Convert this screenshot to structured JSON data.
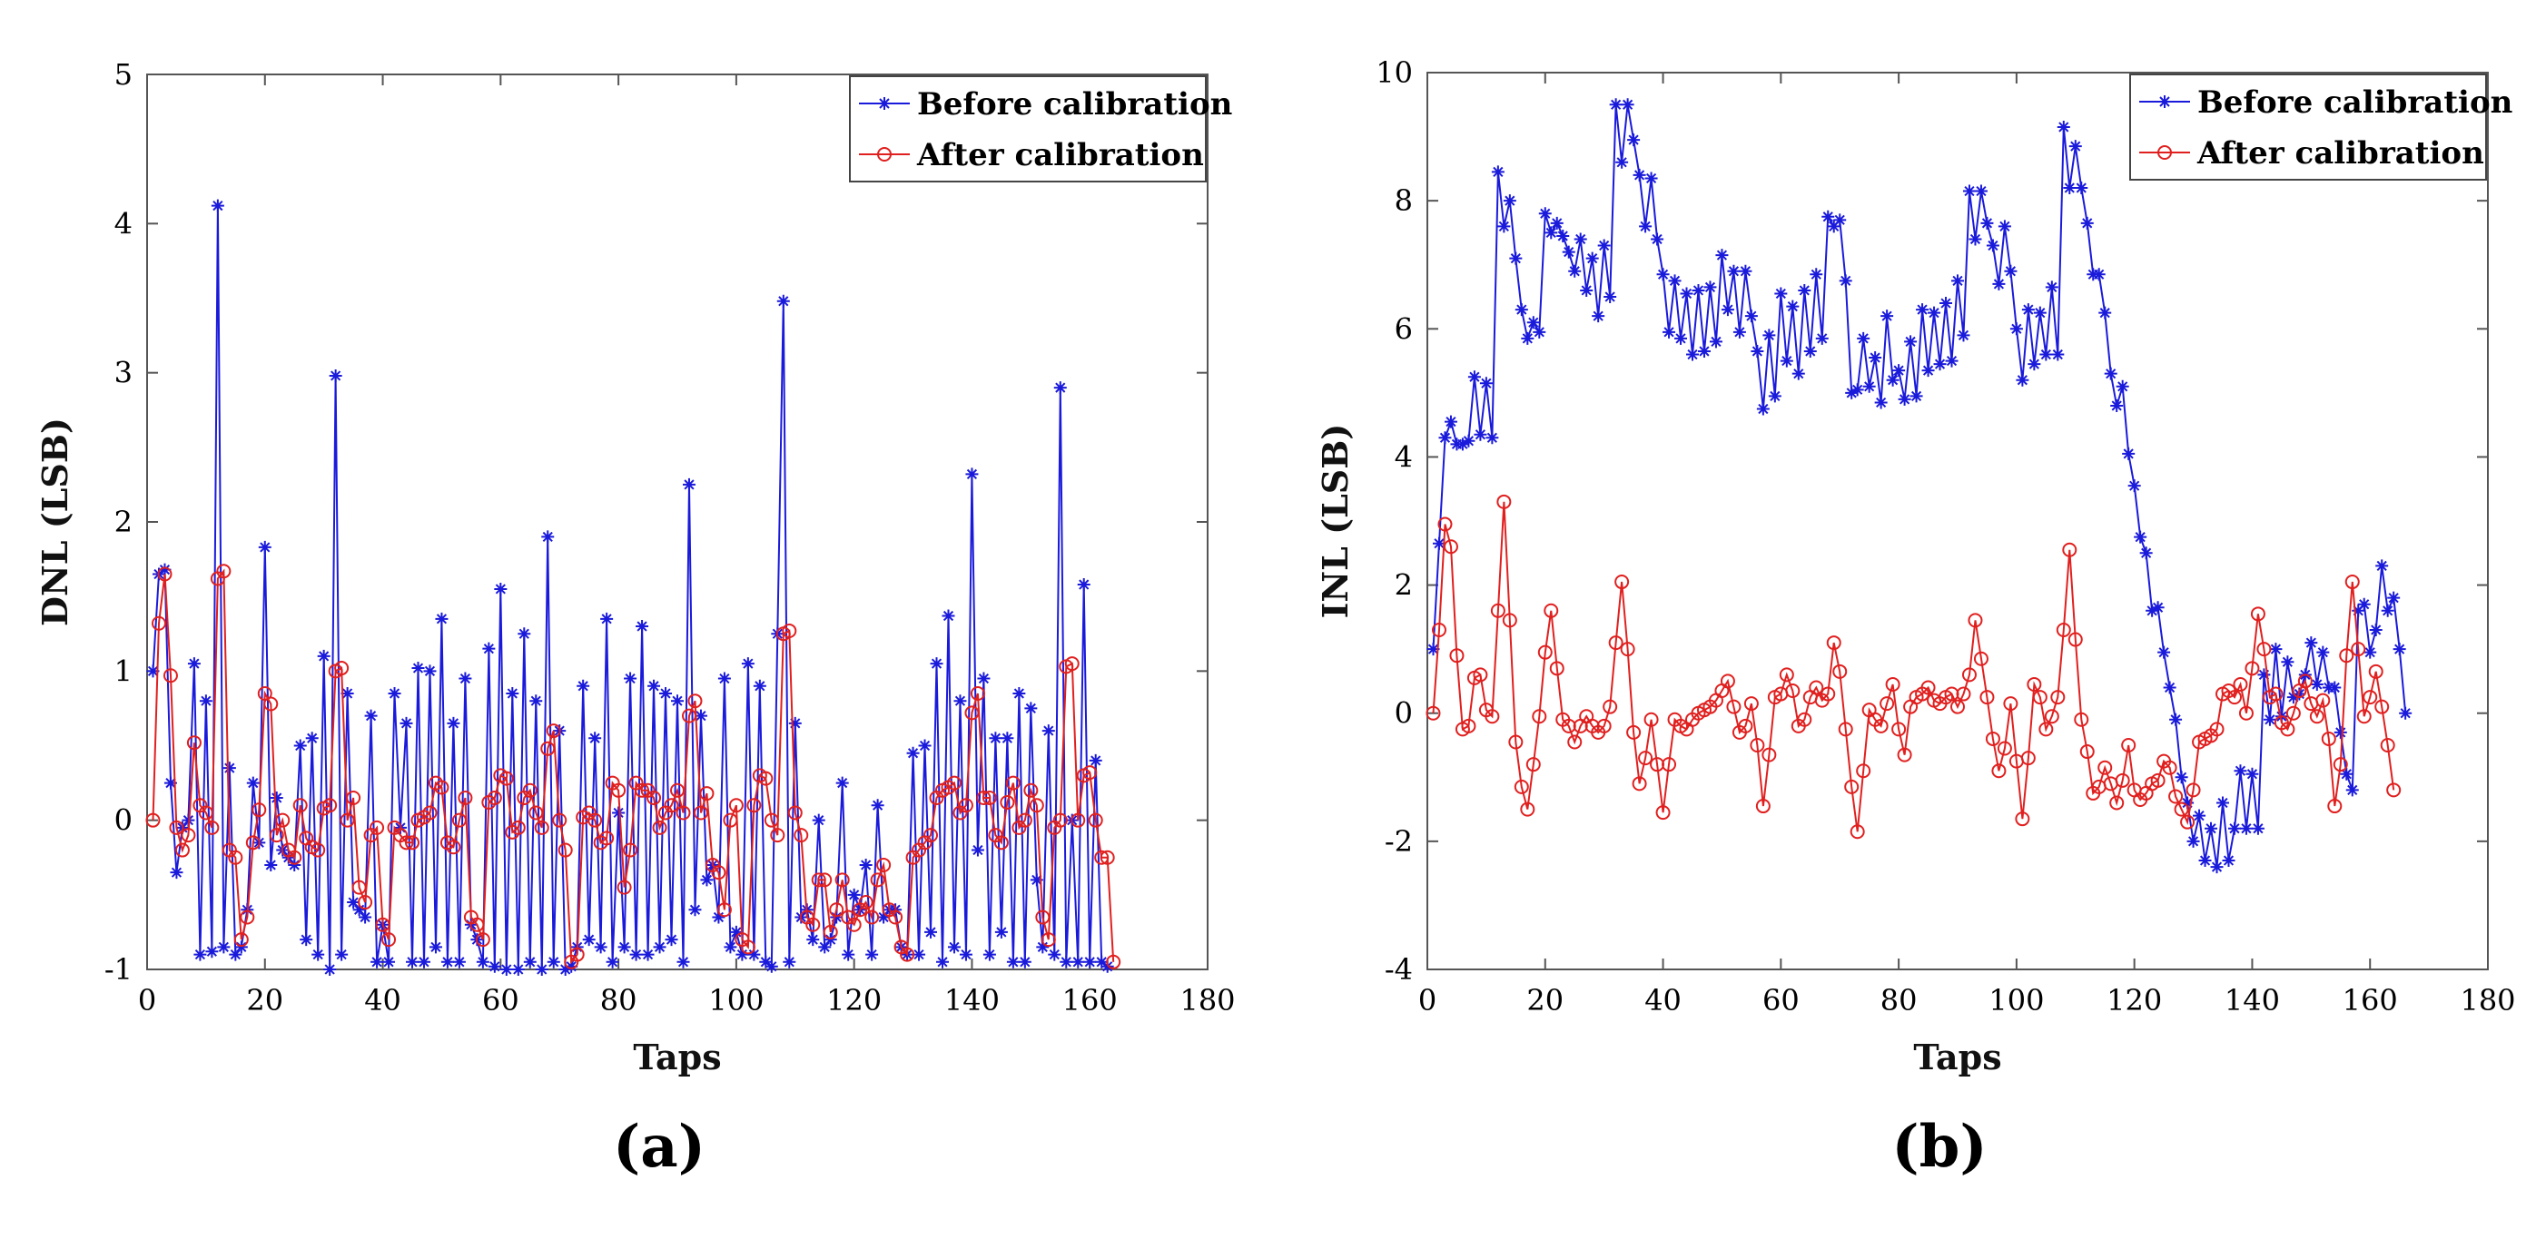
{
  "figure": {
    "panels": [
      {
        "id": "a",
        "label": "(a)"
      },
      {
        "id": "b",
        "label": "(b)"
      }
    ]
  },
  "chart_data": [
    {
      "type": "line",
      "panel_label": "(a)",
      "title": "",
      "xlabel": "Taps",
      "ylabel": "DNL (LSB)",
      "xlim": [
        0,
        180
      ],
      "ylim": [
        -1,
        5
      ],
      "xticks": [
        0,
        20,
        40,
        60,
        80,
        100,
        120,
        140,
        160,
        180
      ],
      "yticks": [
        -1,
        0,
        1,
        2,
        3,
        4,
        5
      ],
      "grid": false,
      "legend_position": "top-right",
      "series": [
        {
          "name": "Before calibration",
          "color": "#1a1adb",
          "marker": "asterisk",
          "values": [
            1.0,
            1.65,
            1.68,
            0.25,
            -0.35,
            -0.05,
            0.0,
            1.05,
            -0.9,
            0.8,
            -0.88,
            4.12,
            -0.85,
            0.35,
            -0.9,
            -0.85,
            -0.6,
            0.25,
            -0.15,
            1.83,
            -0.3,
            0.15,
            -0.2,
            -0.25,
            -0.3,
            0.5,
            -0.8,
            0.55,
            -0.9,
            1.1,
            -1.0,
            2.98,
            -0.9,
            0.85,
            -0.55,
            -0.6,
            -0.65,
            0.7,
            -0.95,
            -0.7,
            -0.95,
            0.85,
            -0.05,
            0.65,
            -0.95,
            1.02,
            -0.95,
            1.0,
            -0.85,
            1.35,
            -0.95,
            0.65,
            -0.95,
            0.95,
            -0.7,
            -0.8,
            -0.95,
            1.15,
            -0.98,
            1.55,
            -1.0,
            0.85,
            -1.0,
            1.25,
            -0.95,
            0.8,
            -1.0,
            1.9,
            -0.95,
            0.6,
            -1.0,
            -0.98,
            -0.85,
            0.9,
            -0.8,
            0.55,
            -0.85,
            1.35,
            -0.95,
            0.05,
            -0.85,
            0.95,
            -0.9,
            1.3,
            -0.9,
            0.9,
            -0.85,
            0.85,
            -0.8,
            0.8,
            -0.95,
            2.25,
            -0.6,
            0.7,
            -0.4,
            -0.3,
            -0.65,
            0.95,
            -0.85,
            -0.75,
            -0.9,
            1.05,
            -0.9,
            0.9,
            -0.95,
            -0.98,
            1.25,
            3.48,
            -0.95,
            0.65,
            -0.65,
            -0.6,
            -0.8,
            0.0,
            -0.85,
            -0.8,
            -0.65,
            0.25,
            -0.9,
            -0.5,
            -0.6,
            -0.3,
            -0.9,
            0.1,
            -0.65,
            -0.6,
            -0.6,
            -0.85,
            -0.9,
            0.45,
            -0.9,
            0.5,
            -0.75,
            1.05,
            -0.95,
            1.37,
            -0.85,
            0.8,
            -0.9,
            2.32,
            -0.2,
            0.95,
            -0.9,
            0.55,
            -0.75,
            0.55,
            -0.95,
            0.85,
            -0.95,
            0.75,
            -0.4,
            -0.85,
            0.6,
            -0.9,
            2.9,
            -0.95,
            0.0,
            -0.95,
            1.58,
            -0.95,
            0.4,
            -0.95,
            -0.98
          ]
        },
        {
          "name": "After calibration",
          "color": "#e0201f",
          "marker": "circle",
          "values": [
            0.0,
            1.32,
            1.65,
            0.97,
            -0.05,
            -0.2,
            -0.1,
            0.52,
            0.1,
            0.05,
            -0.05,
            1.62,
            1.67,
            -0.2,
            -0.25,
            -0.8,
            -0.65,
            -0.15,
            0.07,
            0.85,
            0.78,
            -0.1,
            0.0,
            -0.2,
            -0.25,
            0.1,
            -0.12,
            -0.18,
            -0.2,
            0.08,
            0.1,
            1.0,
            1.02,
            0.0,
            0.15,
            -0.45,
            -0.55,
            -0.1,
            -0.05,
            -0.7,
            -0.8,
            -0.05,
            -0.1,
            -0.15,
            -0.15,
            0.0,
            0.02,
            0.05,
            0.25,
            0.22,
            -0.15,
            -0.18,
            0.0,
            0.15,
            -0.65,
            -0.7,
            -0.8,
            0.12,
            0.15,
            0.3,
            0.28,
            -0.08,
            -0.05,
            0.15,
            0.2,
            0.05,
            -0.05,
            0.48,
            0.6,
            0.0,
            -0.2,
            -0.95,
            -0.9,
            0.02,
            0.05,
            0.0,
            -0.15,
            -0.12,
            0.25,
            0.2,
            -0.45,
            -0.2,
            0.25,
            0.2,
            0.2,
            0.15,
            -0.05,
            0.05,
            0.1,
            0.2,
            0.05,
            0.7,
            0.8,
            0.05,
            0.18,
            -0.3,
            -0.35,
            -0.6,
            0.0,
            0.1,
            -0.8,
            -0.85,
            0.1,
            0.3,
            0.28,
            0.0,
            -0.1,
            1.25,
            1.27,
            0.05,
            -0.1,
            -0.65,
            -0.7,
            -0.4,
            -0.4,
            -0.75,
            -0.6,
            -0.4,
            -0.65,
            -0.7,
            -0.6,
            -0.55,
            -0.65,
            -0.4,
            -0.3,
            -0.6,
            -0.65,
            -0.85,
            -0.9,
            -0.25,
            -0.2,
            -0.15,
            -0.1,
            0.15,
            0.2,
            0.22,
            0.25,
            0.05,
            0.1,
            0.72,
            0.85,
            0.15,
            0.15,
            -0.1,
            -0.15,
            0.12,
            0.25,
            -0.05,
            0.0,
            0.2,
            0.1,
            -0.65,
            -0.8,
            -0.05,
            0.0,
            1.03,
            1.05,
            0.0,
            0.3,
            0.32,
            0.0,
            -0.25,
            -0.25,
            -0.95
          ]
        }
      ]
    },
    {
      "type": "line",
      "panel_label": "(b)",
      "title": "",
      "xlabel": "Taps",
      "ylabel": "INL (LSB)",
      "xlim": [
        0,
        180
      ],
      "ylim": [
        -4,
        10
      ],
      "xticks": [
        0,
        20,
        40,
        60,
        80,
        100,
        120,
        140,
        160,
        180
      ],
      "yticks": [
        -4,
        -2,
        0,
        2,
        4,
        6,
        8,
        10
      ],
      "grid": false,
      "legend_position": "top-right",
      "series": [
        {
          "name": "Before calibration",
          "color": "#1a1adb",
          "marker": "asterisk",
          "values": [
            1.0,
            2.65,
            4.3,
            4.55,
            4.2,
            4.2,
            4.25,
            5.25,
            4.35,
            5.15,
            4.3,
            8.45,
            7.6,
            8.0,
            7.1,
            6.3,
            5.85,
            6.1,
            5.95,
            7.8,
            7.5,
            7.65,
            7.45,
            7.2,
            6.9,
            7.4,
            6.6,
            7.1,
            6.2,
            7.3,
            6.5,
            9.5,
            8.6,
            9.5,
            8.95,
            8.4,
            7.6,
            8.35,
            7.4,
            6.85,
            5.95,
            6.75,
            5.85,
            6.55,
            5.6,
            6.6,
            5.65,
            6.65,
            5.8,
            7.15,
            6.3,
            6.9,
            5.95,
            6.9,
            6.2,
            5.65,
            4.75,
            5.9,
            4.95,
            6.55,
            5.5,
            6.35,
            5.3,
            6.6,
            5.65,
            6.85,
            5.85,
            7.75,
            7.6,
            7.7,
            6.75,
            5.0,
            5.05,
            5.85,
            5.1,
            5.55,
            4.85,
            6.2,
            5.2,
            5.35,
            4.9,
            5.8,
            4.95,
            6.3,
            5.35,
            6.25,
            5.45,
            6.4,
            5.5,
            6.75,
            5.9,
            8.15,
            7.4,
            8.15,
            7.65,
            7.3,
            6.7,
            7.6,
            6.9,
            6.0,
            5.2,
            6.3,
            5.45,
            6.25,
            5.6,
            6.65,
            5.6,
            9.15,
            8.2,
            8.85,
            8.2,
            7.65,
            6.85,
            6.85,
            6.25,
            5.3,
            4.8,
            5.1,
            4.05,
            3.55,
            2.75,
            2.5,
            1.6,
            1.65,
            0.95,
            0.4,
            -0.1,
            -1.0,
            -1.4,
            -2.0,
            -1.6,
            -2.3,
            -1.8,
            -2.4,
            -1.4,
            -2.3,
            -1.8,
            -0.9,
            -1.8,
            -0.95,
            -1.8,
            0.6,
            -0.1,
            1.0,
            -0.05,
            0.8,
            0.25,
            0.3,
            0.6,
            1.1,
            0.45,
            0.95,
            0.4,
            0.4,
            -0.3,
            -0.95,
            -1.2,
            1.6,
            1.7,
            0.95,
            1.3,
            2.3,
            1.6,
            1.8,
            1.0,
            0.0
          ]
        },
        {
          "name": "After calibration",
          "color": "#e0201f",
          "marker": "circle",
          "values": [
            0.0,
            1.3,
            2.95,
            2.6,
            0.9,
            -0.25,
            -0.2,
            0.55,
            0.6,
            0.05,
            -0.05,
            1.6,
            3.3,
            1.45,
            -0.45,
            -1.15,
            -1.5,
            -0.8,
            -0.05,
            0.95,
            1.6,
            0.7,
            -0.1,
            -0.2,
            -0.45,
            -0.2,
            -0.05,
            -0.2,
            -0.3,
            -0.2,
            0.1,
            1.1,
            2.05,
            1.0,
            -0.3,
            -1.1,
            -0.7,
            -0.1,
            -0.8,
            -1.55,
            -0.8,
            -0.1,
            -0.2,
            -0.25,
            -0.1,
            0.0,
            0.05,
            0.1,
            0.2,
            0.35,
            0.5,
            0.1,
            -0.3,
            -0.2,
            0.15,
            -0.5,
            -1.45,
            -0.65,
            0.25,
            0.3,
            0.6,
            0.35,
            -0.2,
            -0.1,
            0.25,
            0.4,
            0.2,
            0.3,
            1.1,
            0.65,
            -0.25,
            -1.15,
            -1.85,
            -0.9,
            0.05,
            -0.1,
            -0.2,
            0.15,
            0.45,
            -0.25,
            -0.65,
            0.1,
            0.25,
            0.3,
            0.4,
            0.2,
            0.15,
            0.25,
            0.3,
            0.1,
            0.3,
            0.6,
            1.45,
            0.85,
            0.25,
            -0.4,
            -0.9,
            -0.55,
            0.15,
            -0.75,
            -1.65,
            -0.7,
            0.45,
            0.25,
            -0.25,
            -0.05,
            0.25,
            1.3,
            2.55,
            1.15,
            -0.1,
            -0.6,
            -1.25,
            -1.15,
            -0.85,
            -1.1,
            -1.4,
            -1.05,
            -0.5,
            -1.2,
            -1.35,
            -1.25,
            -1.1,
            -1.05,
            -0.75,
            -0.85,
            -1.3,
            -1.5,
            -1.7,
            -1.2,
            -0.45,
            -0.4,
            -0.35,
            -0.25,
            0.3,
            0.35,
            0.25,
            0.45,
            0.0,
            0.7,
            1.55,
            1.0,
            0.25,
            0.3,
            -0.15,
            -0.25,
            0.0,
            0.35,
            0.5,
            0.15,
            -0.05,
            0.2,
            -0.4,
            -1.45,
            -0.8,
            0.9,
            2.05,
            1.0,
            -0.05,
            0.25,
            0.65,
            0.1,
            -0.5,
            -1.2
          ]
        }
      ]
    }
  ]
}
